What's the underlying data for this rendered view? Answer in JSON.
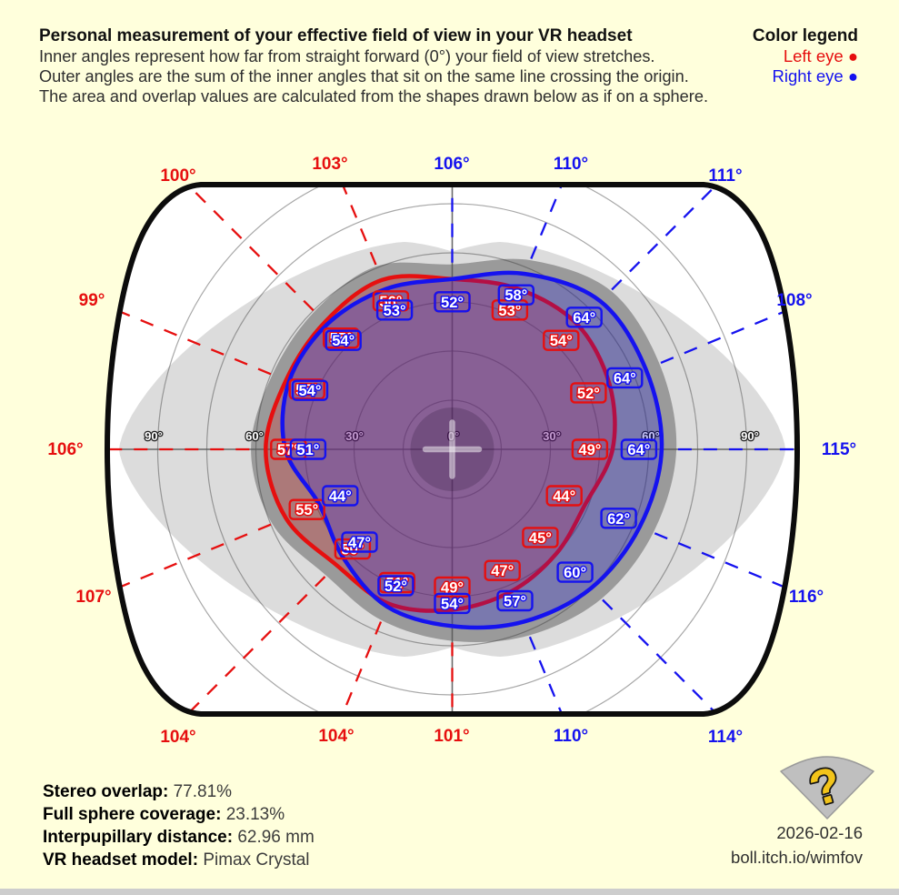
{
  "header": {
    "title": "Personal measurement of your effective field of view in your VR headset",
    "lines": [
      "Inner angles represent how far from straight forward (0°) your field of view stretches.",
      "Outer angles are the sum of the inner angles that sit on the same line crossing the origin.",
      "The area and overlap values are calculated from the shapes drawn below as if on a sphere."
    ]
  },
  "legend": {
    "title": "Color legend",
    "bullet": "●",
    "items": [
      {
        "label": "Left eye",
        "color": "#e60f0f"
      },
      {
        "label": "Right eye",
        "color": "#1512ef"
      }
    ]
  },
  "chart_data": {
    "type": "polar-fov",
    "units": "degrees",
    "directions": [
      "N",
      "NNE",
      "NE",
      "ENE",
      "E",
      "ESE",
      "SE",
      "SSE",
      "S",
      "SSW",
      "SW",
      "WSW",
      "W",
      "WNW",
      "NW",
      "NNW"
    ],
    "grid_rings_deg": [
      15,
      30,
      45,
      60,
      75,
      90
    ],
    "grid_ring_labels": [
      "90°",
      "60°",
      "30°",
      "0°",
      "30°",
      "60°",
      "90°"
    ],
    "series": [
      {
        "name": "Left eye",
        "color": "#e60f0f",
        "inner_angles_deg": [
          52,
          53,
          54,
          52,
          49,
          44,
          45,
          47,
          49,
          51,
          50,
          55,
          57,
          55,
          55,
          56
        ]
      },
      {
        "name": "Right eye",
        "color": "#1512ef",
        "inner_angles_deg": [
          52,
          58,
          64,
          64,
          64,
          62,
          60,
          57,
          54,
          52,
          47,
          44,
          51,
          54,
          54,
          53
        ]
      }
    ],
    "outer_sum_labels": [
      {
        "dir": "N",
        "text": "106°",
        "eye": "right"
      },
      {
        "dir": "NNE",
        "text": "110°",
        "eye": "right"
      },
      {
        "dir": "NE",
        "text": "111°",
        "eye": "right"
      },
      {
        "dir": "ENE",
        "text": "108°",
        "eye": "right"
      },
      {
        "dir": "E",
        "text": "115°",
        "eye": "right"
      },
      {
        "dir": "ESE",
        "text": "116°",
        "eye": "right"
      },
      {
        "dir": "SE",
        "text": "114°",
        "eye": "right"
      },
      {
        "dir": "SSE",
        "text": "110°",
        "eye": "right"
      },
      {
        "dir": "S",
        "text": "101°",
        "eye": "left"
      },
      {
        "dir": "SSW",
        "text": "104°",
        "eye": "left"
      },
      {
        "dir": "SW",
        "text": "104°",
        "eye": "left"
      },
      {
        "dir": "WSW",
        "text": "107°",
        "eye": "left"
      },
      {
        "dir": "W",
        "text": "106°",
        "eye": "left"
      },
      {
        "dir": "WNW",
        "text": "99°",
        "eye": "left"
      },
      {
        "dir": "NW",
        "text": "100°",
        "eye": "left"
      },
      {
        "dir": "NNW",
        "text": "103°",
        "eye": "left"
      }
    ],
    "colors": {
      "background": "#ffffdc",
      "plot_white": "#ffffff",
      "monocular_gray": "#dcdcdc",
      "binocular_rim_gray": "#9a9a9a",
      "boundary": "#0c0c0c"
    }
  },
  "stats": [
    {
      "label": "Stereo overlap:",
      "value": "77.81%"
    },
    {
      "label": "Full sphere coverage:",
      "value": "23.13%"
    },
    {
      "label": "Interpupillary distance:",
      "value": "62.96 mm"
    },
    {
      "label": "VR headset model:",
      "value": "Pimax Crystal"
    }
  ],
  "footer": {
    "date": "2026-02-16",
    "url": "boll.itch.io/wimfov",
    "logo_glyph": "?"
  }
}
